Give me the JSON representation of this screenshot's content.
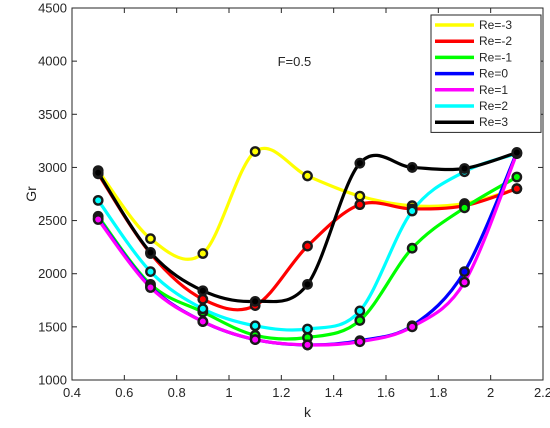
{
  "chart_data": {
    "type": "line",
    "xlabel": "k",
    "ylabel": "Gr",
    "xlim": [
      0.4,
      2.2
    ],
    "ylim": [
      1000,
      4500
    ],
    "xticks": [
      0.4,
      0.6,
      0.8,
      1,
      1.2,
      1.4,
      1.6,
      1.8,
      2,
      2.2
    ],
    "yticks": [
      1000,
      1500,
      2000,
      2500,
      3000,
      3500,
      4000,
      4500
    ],
    "xtick_labels": [
      "0.4",
      "0.6",
      "0.8",
      "1",
      "1.2",
      "1.4",
      "1.6",
      "1.8",
      "2",
      "2.2"
    ],
    "ytick_labels": [
      "1000",
      "1500",
      "2000",
      "2500",
      "3000",
      "3500",
      "4000",
      "4500"
    ],
    "annotation": "F=0.5",
    "legend_position": "top-right",
    "grid": false,
    "x": [
      0.5,
      0.7,
      0.9,
      1.1,
      1.3,
      1.5,
      1.7,
      1.9,
      2.1
    ],
    "series": [
      {
        "name": "Re=-3",
        "color": "#ffff00",
        "values": [
          2970,
          2330,
          2190,
          3150,
          2920,
          2730,
          2640,
          2660,
          2800
        ]
      },
      {
        "name": "Re=-2",
        "color": "#ff0000",
        "values": [
          2940,
          2190,
          1760,
          1700,
          2260,
          2650,
          2610,
          2640,
          2800
        ]
      },
      {
        "name": "Re=-1",
        "color": "#00ff00",
        "values": [
          2540,
          1900,
          1640,
          1420,
          1400,
          1560,
          2240,
          2620,
          2910
        ]
      },
      {
        "name": "Re=0",
        "color": "#0000ff",
        "values": [
          2520,
          1880,
          1550,
          1380,
          1330,
          1370,
          1510,
          2020,
          3140
        ]
      },
      {
        "name": "Re=1",
        "color": "#ff00ff",
        "values": [
          2510,
          1870,
          1550,
          1380,
          1330,
          1360,
          1500,
          1920,
          3130
        ]
      },
      {
        "name": "Re=2",
        "color": "#00ffff",
        "values": [
          2690,
          2020,
          1670,
          1510,
          1480,
          1650,
          2590,
          2960,
          3130
        ]
      },
      {
        "name": "Re=3",
        "color": "#000000",
        "values": [
          2950,
          2200,
          1840,
          1740,
          1900,
          3040,
          3000,
          2990,
          3140
        ]
      }
    ]
  }
}
